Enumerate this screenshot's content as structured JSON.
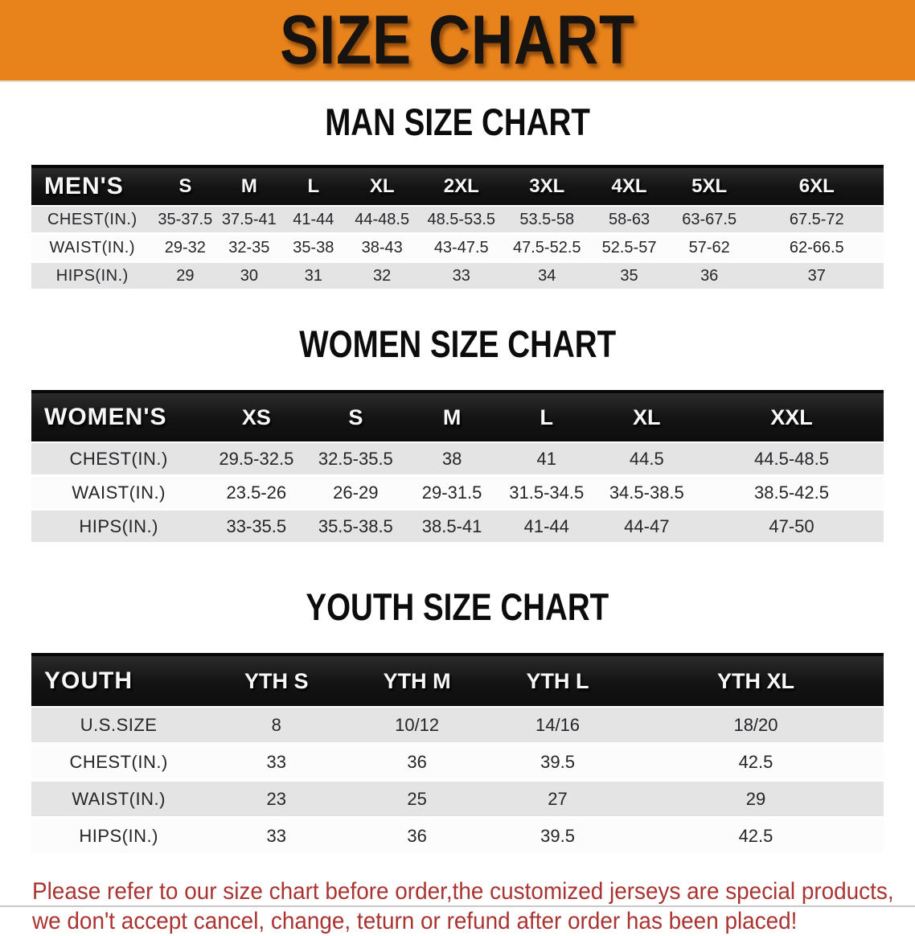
{
  "banner": {
    "title": "SIZE CHART",
    "bg_color": "#E8831C",
    "text_color": "#171310"
  },
  "sections": [
    {
      "heading": "MAN SIZE CHART",
      "table": {
        "header_label": "MEN'S",
        "columns": [
          "S",
          "M",
          "L",
          "XL",
          "2XL",
          "3XL",
          "4XL",
          "5XL",
          "6XL"
        ],
        "rows": [
          {
            "label": "CHEST(IN.)",
            "values": [
              "35-37.5",
              "37.5-41",
              "41-44",
              "44-48.5",
              "48.5-53.5",
              "53.5-58",
              "58-63",
              "63-67.5",
              "67.5-72"
            ]
          },
          {
            "label": "WAIST(IN.)",
            "values": [
              "29-32",
              "32-35",
              "35-38",
              "38-43",
              "43-47.5",
              "47.5-52.5",
              "52.5-57",
              "57-62",
              "62-66.5"
            ]
          },
          {
            "label": "HIPS(IN.)",
            "values": [
              "29",
              "30",
              "31",
              "32",
              "33",
              "34",
              "35",
              "36",
              "37"
            ]
          }
        ]
      }
    },
    {
      "heading": "WOMEN SIZE CHART",
      "table": {
        "header_label": "WOMEN'S",
        "columns": [
          "XS",
          "S",
          "M",
          "L",
          "XL",
          "XXL"
        ],
        "rows": [
          {
            "label": "CHEST(IN.)",
            "values": [
              "29.5-32.5",
              "32.5-35.5",
              "38",
              "41",
              "44.5",
              "44.5-48.5"
            ]
          },
          {
            "label": "WAIST(IN.)",
            "values": [
              "23.5-26",
              "26-29",
              "29-31.5",
              "31.5-34.5",
              "34.5-38.5",
              "38.5-42.5"
            ]
          },
          {
            "label": "HIPS(IN.)",
            "values": [
              "33-35.5",
              "35.5-38.5",
              "38.5-41",
              "41-44",
              "44-47",
              "47-50"
            ]
          }
        ]
      }
    },
    {
      "heading": "YOUTH SIZE CHART",
      "table": {
        "header_label": "YOUTH",
        "columns": [
          "YTH S",
          "YTH M",
          "YTH L",
          "YTH XL"
        ],
        "rows": [
          {
            "label": "U.S.SIZE",
            "values": [
              "8",
              "10/12",
              "14/16",
              "18/20"
            ]
          },
          {
            "label": "CHEST(IN.)",
            "values": [
              "33",
              "36",
              "39.5",
              "42.5"
            ]
          },
          {
            "label": "WAIST(IN.)",
            "values": [
              "23",
              "25",
              "27",
              "29"
            ]
          },
          {
            "label": "HIPS(IN.)",
            "values": [
              "33",
              "36",
              "39.5",
              "42.5"
            ]
          }
        ]
      }
    }
  ],
  "table_style": {
    "header_band_color": "#161616",
    "header_text_color": "#F7F7F7",
    "stripe_gray": "#E4E4E4",
    "stripe_white": "#FCFCFC"
  },
  "footer": {
    "text_color": "#A93431",
    "lines": [
      "Please refer to our size chart before order,the customized jerseys are special products,",
      "we don't accept cancel, change, teturn or refund after order has been placed!"
    ]
  }
}
